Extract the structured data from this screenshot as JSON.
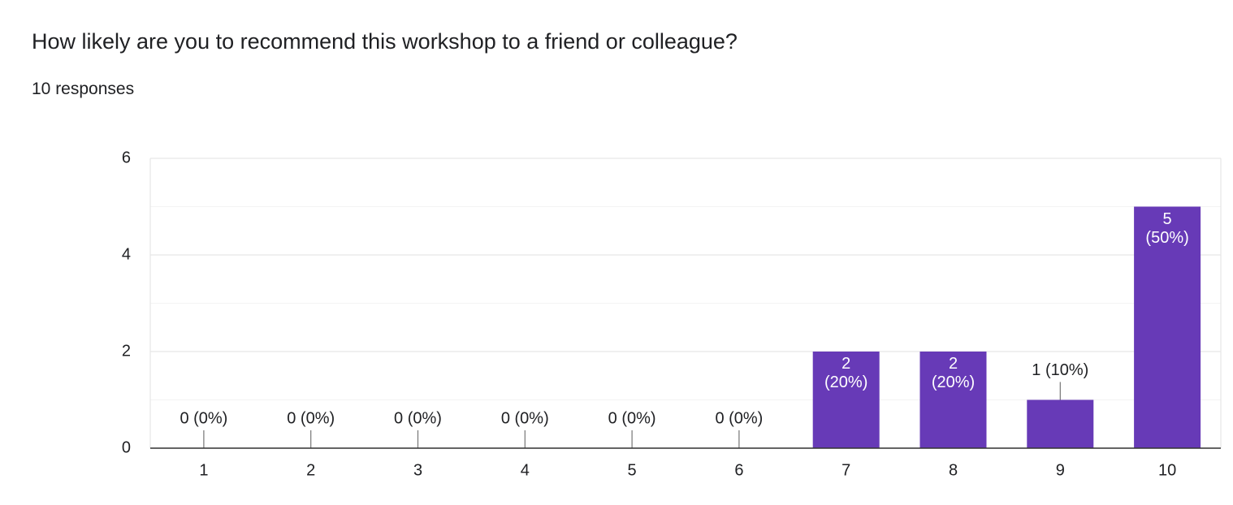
{
  "chart_data": {
    "type": "bar",
    "title": "How likely are you to recommend this workshop to a friend or colleague?",
    "subtitle": "10 responses",
    "categories": [
      "1",
      "2",
      "3",
      "4",
      "5",
      "6",
      "7",
      "8",
      "9",
      "10"
    ],
    "values": [
      0,
      0,
      0,
      0,
      0,
      0,
      2,
      2,
      1,
      5
    ],
    "value_labels": [
      "0 (0%)",
      "0 (0%)",
      "0 (0%)",
      "0 (0%)",
      "0 (0%)",
      "0 (0%)",
      "2 (20%)",
      "2 (20%)",
      "1 (10%)",
      "5 (50%)"
    ],
    "color": "#673ab7",
    "ylim": [
      0,
      6
    ],
    "yticks": [
      0,
      2,
      4,
      6
    ],
    "grid": true
  }
}
